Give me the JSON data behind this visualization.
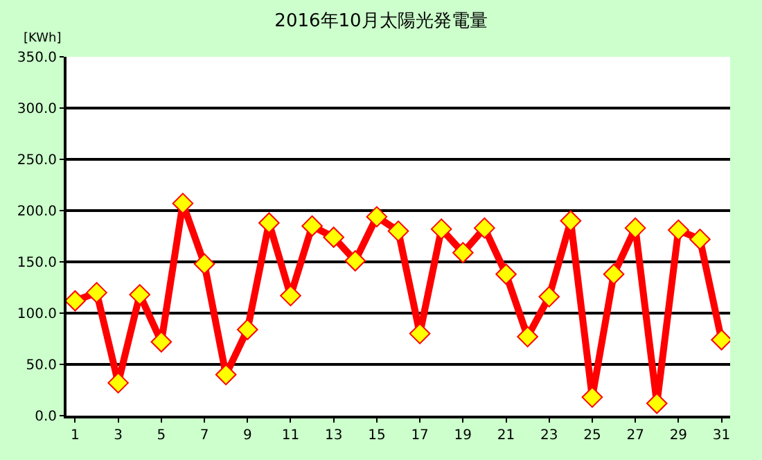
{
  "chart_data": {
    "type": "line",
    "title": "2016年10月太陽光発電量",
    "ylabel": "[KWh]",
    "x": [
      1,
      2,
      3,
      4,
      5,
      6,
      7,
      8,
      9,
      10,
      11,
      12,
      13,
      14,
      15,
      16,
      17,
      18,
      19,
      20,
      21,
      22,
      23,
      24,
      25,
      26,
      27,
      28,
      29,
      30,
      31
    ],
    "series": [
      {
        "color": "#ff0000",
        "values": [
          112,
          120,
          32,
          118,
          72,
          207,
          148,
          40,
          84,
          188,
          117,
          185,
          174,
          151,
          194,
          180,
          80,
          182,
          159,
          183,
          138,
          77,
          116,
          190,
          18,
          138,
          183,
          12,
          181,
          172,
          74
        ]
      }
    ],
    "xlim": [
      0.6,
      31.4
    ],
    "xticks": [
      1,
      3,
      5,
      7,
      9,
      11,
      13,
      15,
      17,
      19,
      21,
      23,
      25,
      27,
      29,
      31
    ],
    "ylim": [
      0,
      350
    ],
    "yticks": [
      {
        "value": 0,
        "label": "0.0"
      },
      {
        "value": 50,
        "label": "50.0"
      },
      {
        "value": 100,
        "label": "100.0"
      },
      {
        "value": 150,
        "label": "150.0"
      },
      {
        "value": 200,
        "label": "200.0"
      },
      {
        "value": 250,
        "label": "250.0"
      },
      {
        "value": 300,
        "label": "300.0"
      },
      {
        "value": 350,
        "label": "350.0"
      }
    ],
    "grid": "y",
    "marker": "diamond",
    "line_style": "solid"
  }
}
